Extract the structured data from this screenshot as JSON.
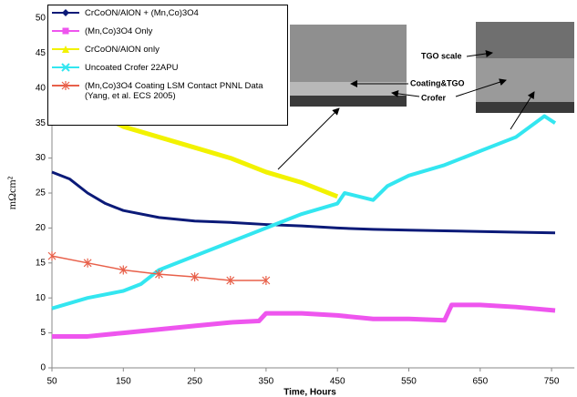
{
  "chart_data": {
    "type": "line",
    "xlabel": "Time, Hours",
    "ylabel": "mΩcm²",
    "xlim": [
      50,
      782
    ],
    "xticks": [
      50,
      150,
      250,
      350,
      450,
      550,
      650,
      750
    ],
    "ylim": [
      0,
      50
    ],
    "yticks": [
      0,
      5,
      10,
      15,
      20,
      25,
      30,
      35,
      40,
      45,
      50
    ],
    "annotations": [
      "TGO scale",
      "Coating&TGO",
      "Crofer"
    ],
    "series": [
      {
        "name": "CrCoON/AlON + (Mn,Co)3O4",
        "color": "#0b1a78",
        "marker": "diamond",
        "x": [
          50,
          75,
          100,
          125,
          150,
          200,
          250,
          300,
          350,
          400,
          450,
          500,
          550,
          600,
          650,
          700,
          755
        ],
        "values": [
          28,
          27,
          25,
          23.5,
          22.5,
          21.5,
          21,
          20.8,
          20.5,
          20.3,
          20,
          19.8,
          19.7,
          19.6,
          19.5,
          19.4,
          19.3
        ]
      },
      {
        "name": "(Mn,Co)3O4 Only",
        "color": "#ee55ee",
        "marker": "square",
        "x": [
          50,
          100,
          150,
          200,
          250,
          300,
          340,
          350,
          400,
          450,
          500,
          550,
          600,
          610,
          650,
          700,
          755
        ],
        "values": [
          4.5,
          4.5,
          5,
          5.5,
          6,
          6.5,
          6.7,
          7.8,
          7.8,
          7.5,
          7,
          7,
          6.8,
          9,
          9,
          8.7,
          8.2
        ]
      },
      {
        "name": "CrCoON/AlON only",
        "color": "#f2f200",
        "marker": "triangle",
        "x": [
          50,
          100,
          150,
          200,
          250,
          300,
          350,
          400,
          450
        ],
        "values": [
          40.6,
          37,
          34.5,
          33,
          31.5,
          30,
          28,
          26.5,
          24.5
        ]
      },
      {
        "name": "Uncoated Crofer 22APU",
        "color": "#33e6f0",
        "marker": "x",
        "x": [
          50,
          100,
          150,
          175,
          200,
          250,
          300,
          350,
          400,
          450,
          460,
          500,
          520,
          550,
          600,
          650,
          700,
          740,
          755
        ],
        "values": [
          8.5,
          10,
          11,
          12,
          14,
          16,
          18,
          20,
          22,
          23.5,
          25,
          24,
          26,
          27.5,
          29,
          31,
          33,
          36,
          35
        ]
      },
      {
        "name": "(Mn,Co)3O4 Coating  LSM Contact PNNL Data (Yang, et al. ECS 2005)",
        "color": "#e8604a",
        "marker": "star",
        "markers_on_line": true,
        "x": [
          50,
          100,
          150,
          200,
          250,
          300,
          350
        ],
        "values": [
          16,
          15,
          14,
          13.4,
          13,
          12.5,
          12.5
        ]
      }
    ]
  }
}
